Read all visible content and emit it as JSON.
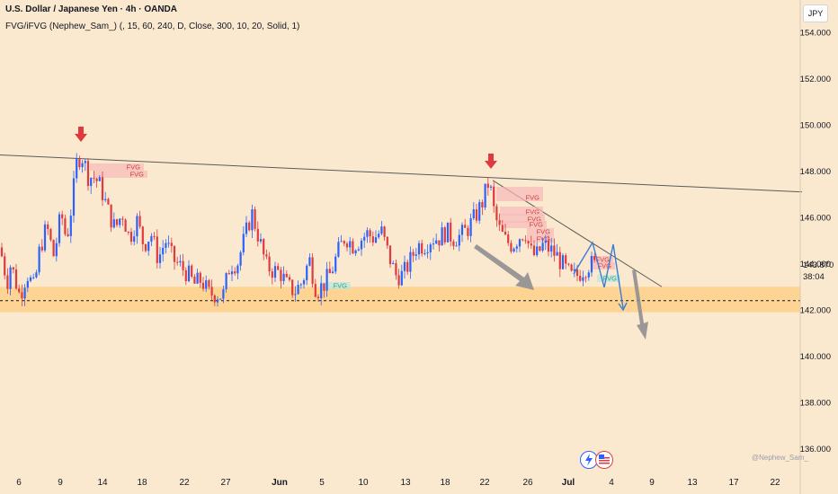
{
  "header": {
    "title": "U.S. Dollar / Japanese Yen · 4h · OANDA",
    "indicator": "FVG/iFVG (Nephew_Sam_) (, 15, 60, 240, D, Close, 300, 10, 20, Solid, 1)",
    "currency": "JPY"
  },
  "price_tag": {
    "price": "143.870",
    "countdown": "38:04"
  },
  "watermark": "@Nephew_Sam_",
  "colors": {
    "background": "#fbe9cf",
    "bull": "#2962ff",
    "bear": "#e0393e",
    "zone": "#ffcc80",
    "fvg_bear": "#f7b9b9",
    "fvg_bull": "#b9e7de",
    "arrow_gray": "#8f8f8f",
    "projection": "#3a7bd5"
  },
  "chart_data": {
    "type": "candlestick",
    "ylim": [
      135.2,
      155.0
    ],
    "y_ticks": [
      "154.000",
      "152.000",
      "150.000",
      "148.000",
      "146.000",
      "144.000",
      "142.000",
      "140.000",
      "138.000",
      "136.000"
    ],
    "x_ticks": [
      "6",
      "9",
      "14",
      "18",
      "22",
      "27",
      "Jun",
      "5",
      "10",
      "13",
      "18",
      "22",
      "26",
      "Jul",
      "4",
      "9",
      "13",
      "17",
      "22"
    ],
    "series_path": [
      [
        0,
        144.7
      ],
      [
        8,
        143.2
      ],
      [
        12,
        144.0
      ],
      [
        22,
        142.6
      ],
      [
        30,
        143.6
      ],
      [
        38,
        142.9
      ],
      [
        44,
        144.6
      ],
      [
        52,
        145.6
      ],
      [
        60,
        144.3
      ],
      [
        68,
        146.2
      ],
      [
        74,
        145.0
      ],
      [
        80,
        146.6
      ],
      [
        86,
        148.6
      ],
      [
        92,
        148.6
      ],
      [
        98,
        147.8
      ],
      [
        106,
        147.7
      ],
      [
        112,
        147.3
      ],
      [
        120,
        146.3
      ],
      [
        128,
        145.5
      ],
      [
        136,
        146.2
      ],
      [
        144,
        145.1
      ],
      [
        152,
        145.9
      ],
      [
        160,
        144.8
      ],
      [
        168,
        145.3
      ],
      [
        176,
        144.2
      ],
      [
        184,
        145.0
      ],
      [
        192,
        144.2
      ],
      [
        200,
        143.9
      ],
      [
        208,
        143.6
      ],
      [
        216,
        143.1
      ],
      [
        224,
        143.3
      ],
      [
        232,
        142.7
      ],
      [
        240,
        142.7
      ],
      [
        248,
        142.6
      ],
      [
        256,
        144.0
      ],
      [
        264,
        144.0
      ],
      [
        272,
        145.1
      ],
      [
        280,
        146.2
      ],
      [
        288,
        145.1
      ],
      [
        296,
        143.9
      ],
      [
        304,
        143.7
      ],
      [
        312,
        143.6
      ],
      [
        320,
        143.0
      ],
      [
        328,
        142.8
      ],
      [
        336,
        143.2
      ],
      [
        344,
        144.2
      ],
      [
        352,
        142.8
      ],
      [
        360,
        143.1
      ],
      [
        368,
        143.6
      ],
      [
        376,
        144.5
      ],
      [
        384,
        145.2
      ],
      [
        392,
        144.8
      ],
      [
        400,
        145.0
      ],
      [
        408,
        145.3
      ],
      [
        416,
        145.1
      ],
      [
        424,
        145.4
      ],
      [
        432,
        144.4
      ],
      [
        440,
        143.5
      ],
      [
        448,
        143.5
      ],
      [
        456,
        144.1
      ],
      [
        464,
        144.8
      ],
      [
        472,
        144.8
      ],
      [
        480,
        145.1
      ],
      [
        488,
        145.1
      ],
      [
        496,
        145.4
      ],
      [
        504,
        145.1
      ],
      [
        512,
        145.2
      ],
      [
        520,
        145.5
      ],
      [
        528,
        146.0
      ],
      [
        536,
        146.6
      ],
      [
        544,
        147.6
      ],
      [
        550,
        146.1
      ],
      [
        556,
        145.4
      ],
      [
        562,
        145.0
      ],
      [
        570,
        144.8
      ],
      [
        578,
        145.2
      ],
      [
        584,
        145.4
      ],
      [
        590,
        144.5
      ],
      [
        596,
        144.3
      ],
      [
        604,
        144.8
      ],
      [
        612,
        144.6
      ],
      [
        620,
        144.3
      ],
      [
        628,
        143.8
      ],
      [
        636,
        143.4
      ],
      [
        642,
        143.5
      ],
      [
        650,
        143.8
      ],
      [
        656,
        144.0
      ],
      [
        662,
        143.9
      ]
    ],
    "support_zone": [
      141.9,
      143.0
    ],
    "dashed_level": 142.4,
    "descending_trendline": [
      [
        0,
        148.7
      ],
      [
        892,
        147.1
      ]
    ],
    "second_trendline": [
      [
        548,
        147.6
      ],
      [
        736,
        143.0
      ]
    ],
    "annotations": [
      "FVG",
      "FVG",
      "FVG",
      "FVG",
      "FVG",
      "FVG",
      "FVG",
      "FVG",
      "FVG",
      "FVG",
      "FVG",
      "FVG"
    ]
  }
}
